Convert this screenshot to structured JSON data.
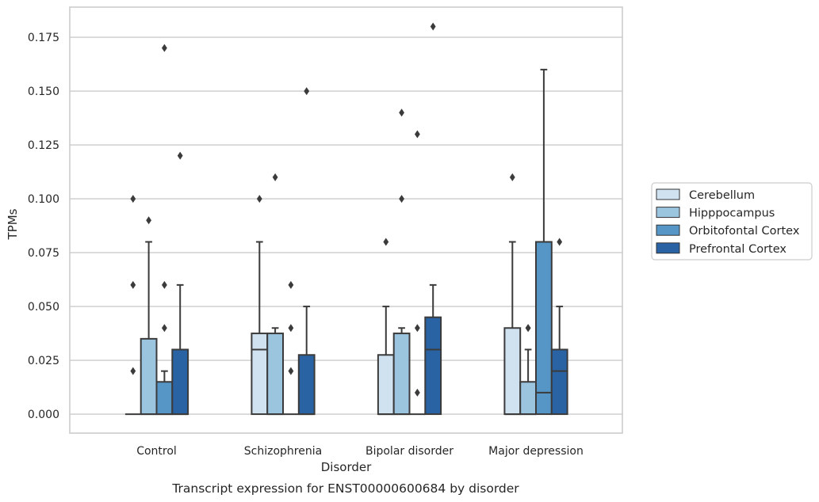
{
  "chart_data": {
    "type": "box",
    "caption": "Transcript expression for ENST00000600684 by disorder",
    "xlabel": "Disorder",
    "ylabel": "TPMs",
    "ylim": [
      -0.0088,
      0.189
    ],
    "yticks": [
      "0.000",
      "0.025",
      "0.050",
      "0.075",
      "0.100",
      "0.125",
      "0.150",
      "0.175"
    ],
    "ytick_values": [
      0,
      0.025,
      0.05,
      0.075,
      0.1,
      0.125,
      0.15,
      0.175
    ],
    "grid": true,
    "legend_position": "right",
    "categories": [
      "Control",
      "Schizophrenia",
      "Bipolar disorder",
      "Major depression"
    ],
    "series": [
      {
        "name": "Cerebellum",
        "color": "#d0e1f0",
        "boxes": [
          {
            "q1": 0,
            "median": 0,
            "q3": 0,
            "whisker_low": 0,
            "whisker_high": 0,
            "outliers": [
              0.02,
              0.06,
              0.1
            ]
          },
          {
            "q1": 0,
            "median": 0.03,
            "q3": 0.0375,
            "whisker_low": 0,
            "whisker_high": 0.08,
            "outliers": [
              0.1
            ]
          },
          {
            "q1": 0,
            "median": 0,
            "q3": 0.0275,
            "whisker_low": 0,
            "whisker_high": 0.05,
            "outliers": [
              0.08
            ]
          },
          {
            "q1": 0,
            "median": 0,
            "q3": 0.04,
            "whisker_low": 0,
            "whisker_high": 0.08,
            "outliers": [
              0.11
            ]
          }
        ]
      },
      {
        "name": "Hipppocampus",
        "color": "#9bc4de",
        "boxes": [
          {
            "q1": 0,
            "median": 0,
            "q3": 0.035,
            "whisker_low": 0,
            "whisker_high": 0.08,
            "outliers": [
              0.09
            ]
          },
          {
            "q1": 0,
            "median": 0,
            "q3": 0.0375,
            "whisker_low": 0,
            "whisker_high": 0.04,
            "outliers": [
              0.11
            ]
          },
          {
            "q1": 0,
            "median": 0,
            "q3": 0.0375,
            "whisker_low": 0,
            "whisker_high": 0.04,
            "outliers": [
              0.1,
              0.14
            ]
          },
          {
            "q1": 0,
            "median": 0,
            "q3": 0.015,
            "whisker_low": 0,
            "whisker_high": 0.03,
            "outliers": [
              0.04,
              0.04
            ]
          }
        ]
      },
      {
        "name": "Orbitofontal Cortex",
        "color": "#5596c7",
        "boxes": [
          {
            "q1": 0,
            "median": 0,
            "q3": 0.015,
            "whisker_low": 0,
            "whisker_high": 0.02,
            "outliers": [
              0.04,
              0.06,
              0.17
            ]
          },
          {
            "q1": 0,
            "median": 0,
            "q3": 0,
            "whisker_low": 0,
            "whisker_high": 0,
            "outliers": [
              0.02,
              0.04,
              0.06
            ]
          },
          {
            "q1": 0,
            "median": 0,
            "q3": 0,
            "whisker_low": 0,
            "whisker_high": 0,
            "outliers": [
              0.01,
              0.04,
              0.13
            ]
          },
          {
            "q1": 0,
            "median": 0.01,
            "q3": 0.08,
            "whisker_low": 0,
            "whisker_high": 0.16,
            "outliers": []
          }
        ]
      },
      {
        "name": "Prefrontal Cortex",
        "color": "#2963a4",
        "boxes": [
          {
            "q1": 0,
            "median": 0,
            "q3": 0.03,
            "whisker_low": 0,
            "whisker_high": 0.06,
            "outliers": [
              0.12
            ]
          },
          {
            "q1": 0,
            "median": 0,
            "q3": 0.0275,
            "whisker_low": 0,
            "whisker_high": 0.05,
            "outliers": [
              0.15
            ]
          },
          {
            "q1": 0,
            "median": 0.03,
            "q3": 0.045,
            "whisker_low": 0,
            "whisker_high": 0.06,
            "outliers": [
              0.18
            ]
          },
          {
            "q1": 0,
            "median": 0.02,
            "q3": 0.03,
            "whisker_low": 0,
            "whisker_high": 0.05,
            "outliers": [
              0.08
            ]
          }
        ]
      }
    ]
  }
}
